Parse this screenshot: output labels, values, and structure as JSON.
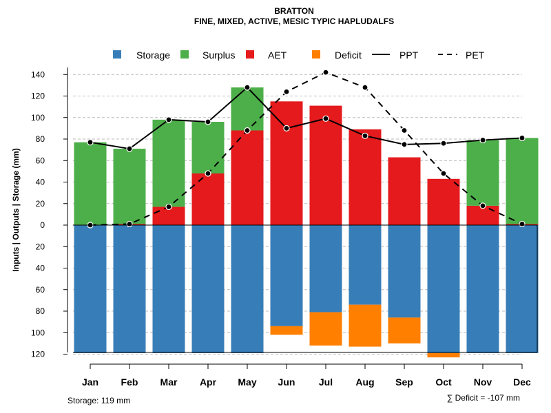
{
  "colors": {
    "storage": "#377EB8",
    "surplus": "#4DAF4A",
    "aet": "#E41A1C",
    "deficit": "#FF7F00",
    "grid": "#bbbbbb"
  },
  "chart_data": {
    "type": "bar",
    "title": "BRATTON",
    "subtitle": "FINE, MIXED, ACTIVE, MESIC TYPIC HAPLUDALFS",
    "ylabel": "Inputs | Outputs | Storage    (mm)",
    "ylim": [
      -120,
      145
    ],
    "yticks": [
      140,
      120,
      100,
      80,
      60,
      40,
      20,
      0,
      -20,
      -40,
      -60,
      -80,
      -100,
      -120
    ],
    "ytick_labels": [
      "140",
      "120",
      "100",
      "80",
      "60",
      "40",
      "20",
      "0",
      "20",
      "40",
      "60",
      "80",
      "100",
      "120"
    ],
    "categories": [
      "Jan",
      "Feb",
      "Mar",
      "Apr",
      "May",
      "Jun",
      "Jul",
      "Aug",
      "Sep",
      "Oct",
      "Nov",
      "Dec"
    ],
    "legend": {
      "placement": "top",
      "entries": [
        {
          "name": "Storage",
          "kind": "box",
          "color_key": "storage"
        },
        {
          "name": "Surplus",
          "kind": "box",
          "color_key": "surplus"
        },
        {
          "name": "AET",
          "kind": "box",
          "color_key": "aet"
        },
        {
          "name": "Deficit",
          "kind": "box",
          "color_key": "deficit"
        },
        {
          "name": "PPT",
          "kind": "solid"
        },
        {
          "name": "PET",
          "kind": "dashed"
        }
      ]
    },
    "series": [
      {
        "name": "AET",
        "values": [
          0,
          1,
          17,
          48,
          88,
          115,
          111,
          89,
          63,
          43,
          18,
          1
        ]
      },
      {
        "name": "Surplus",
        "values": [
          77,
          70,
          81,
          48,
          40,
          0,
          0,
          0,
          0,
          0,
          61,
          80
        ]
      },
      {
        "name": "Storage",
        "values": [
          -119,
          -119,
          -119,
          -119,
          -119,
          -94,
          -81,
          -74,
          -86,
          -119,
          -119,
          -119
        ]
      },
      {
        "name": "Deficit",
        "values": [
          0,
          0,
          0,
          0,
          0,
          -8,
          -31,
          -39,
          -24,
          -4,
          0,
          0
        ]
      },
      {
        "name": "PPT",
        "values": [
          77,
          71,
          98,
          96,
          128,
          90,
          99,
          83,
          75,
          76,
          79,
          81
        ]
      },
      {
        "name": "PET",
        "values": [
          0,
          1,
          17,
          48,
          88,
          124,
          142,
          128,
          88,
          48,
          18,
          1
        ]
      }
    ]
  },
  "footnotes": {
    "storage": "Storage: 119 mm",
    "deficit": "∑ Deficit = -107 mm"
  }
}
